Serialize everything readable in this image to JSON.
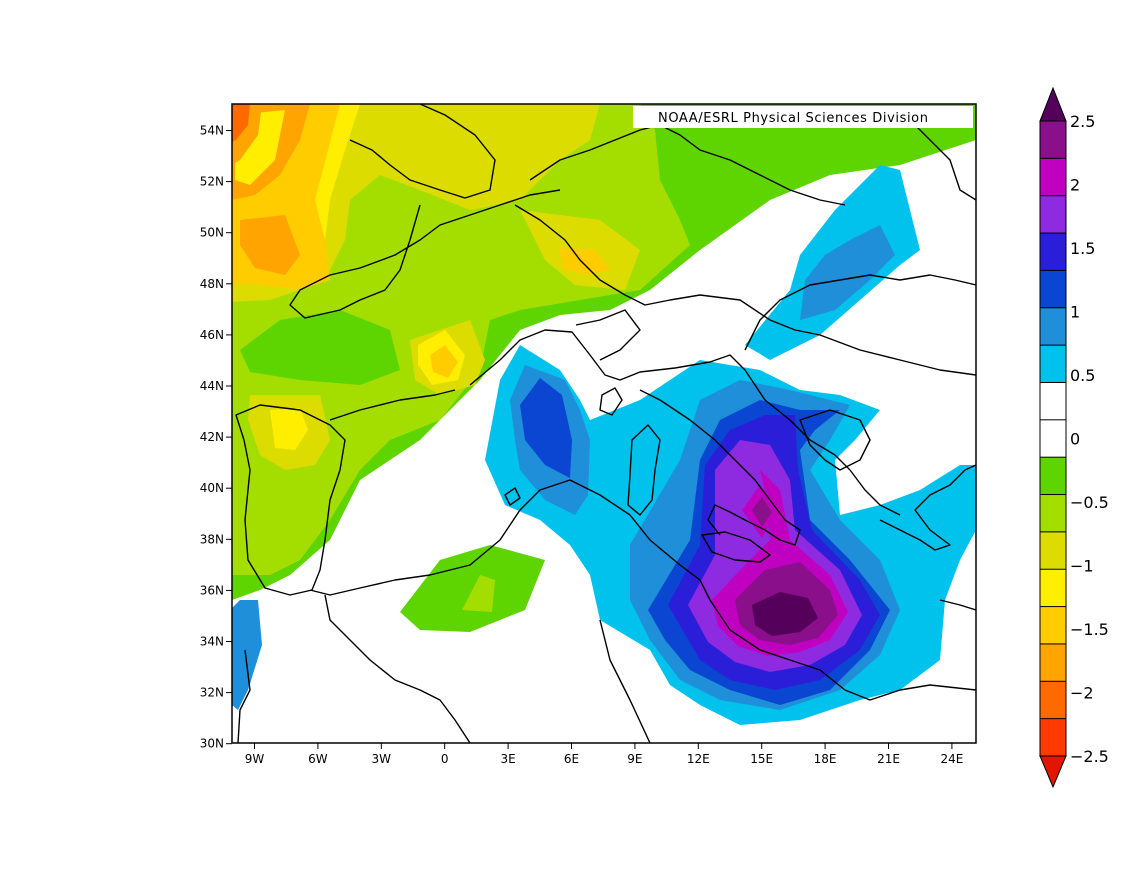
{
  "credit": "NOAA/ESRL Physical Sciences Division",
  "lat_labels": [
    "54N",
    "52N",
    "50N",
    "48N",
    "46N",
    "44N",
    "42N",
    "40N",
    "38N",
    "36N",
    "34N",
    "32N",
    "30N"
  ],
  "lon_labels": [
    "9W",
    "6W",
    "3W",
    "0",
    "3E",
    "6E",
    "9E",
    "12E",
    "15E",
    "18E",
    "21E",
    "24E"
  ],
  "colorbar": {
    "labels": [
      "2.5",
      "2",
      "1.5",
      "1",
      "0.5",
      "0",
      "−0.5",
      "−1",
      "−1.5",
      "−2",
      "−2.5"
    ],
    "colors": [
      "#55005a",
      "#8a0f8a",
      "#c000c0",
      "#8e2ae0",
      "#2b1ed8",
      "#0a46d2",
      "#1e8fd8",
      "#00c2ec",
      "#ffffff",
      "#ffffff",
      "#5ed400",
      "#a4de00",
      "#dcdc00",
      "#ffee00",
      "#ffcc00",
      "#ffa400",
      "#ff6a00",
      "#ff3a00",
      "#e21600"
    ]
  },
  "chart_data": {
    "type": "heatmap",
    "lon_range": [
      -10,
      25
    ],
    "lat_range": [
      30,
      55
    ],
    "colorbar_range": [
      -2.5,
      2.5
    ],
    "levels": [
      -2.5,
      -2,
      -1.5,
      -1,
      -0.5,
      0,
      0.5,
      1,
      1.5,
      2,
      2.5
    ],
    "peak_positive": {
      "lon": 15.5,
      "lat": 35,
      "value": 2.3
    },
    "peak_negative": {
      "lon": -10,
      "lat": 54.5,
      "value": -2.3
    }
  }
}
